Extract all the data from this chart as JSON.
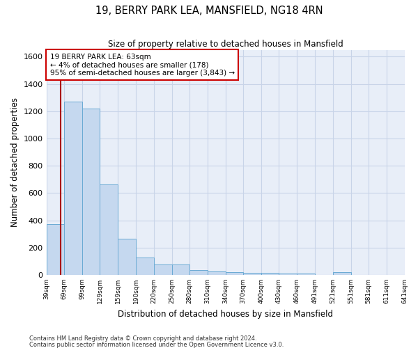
{
  "title": "19, BERRY PARK LEA, MANSFIELD, NG18 4RN",
  "subtitle": "Size of property relative to detached houses in Mansfield",
  "xlabel": "Distribution of detached houses by size in Mansfield",
  "ylabel": "Number of detached properties",
  "footer_line1": "Contains HM Land Registry data © Crown copyright and database right 2024.",
  "footer_line2": "Contains public sector information licensed under the Open Government Licence v3.0.",
  "bar_color": "#c5d8ef",
  "bar_edge_color": "#6aaad4",
  "grid_color": "#c8d4e8",
  "background_color": "#e8eef8",
  "annotation_box_color": "#cc0000",
  "annotation_text": "19 BERRY PARK LEA: 63sqm\n← 4% of detached houses are smaller (178)\n95% of semi-detached houses are larger (3,843) →",
  "red_line_x": 63,
  "red_line_color": "#aa0000",
  "bins": [
    39,
    69,
    99,
    129,
    159,
    190,
    220,
    250,
    280,
    310,
    340,
    370,
    400,
    430,
    460,
    491,
    521,
    551,
    581,
    611,
    641
  ],
  "counts": [
    370,
    1270,
    1220,
    665,
    265,
    125,
    75,
    75,
    35,
    25,
    20,
    15,
    15,
    10,
    10,
    0,
    20,
    0,
    0,
    0
  ],
  "ylim": [
    0,
    1650
  ],
  "yticks": [
    0,
    200,
    400,
    600,
    800,
    1000,
    1200,
    1400,
    1600
  ],
  "tick_labels": [
    "39sqm",
    "69sqm",
    "99sqm",
    "129sqm",
    "159sqm",
    "190sqm",
    "220sqm",
    "250sqm",
    "280sqm",
    "310sqm",
    "340sqm",
    "370sqm",
    "400sqm",
    "430sqm",
    "460sqm",
    "491sqm",
    "521sqm",
    "551sqm",
    "581sqm",
    "611sqm",
    "641sqm"
  ]
}
